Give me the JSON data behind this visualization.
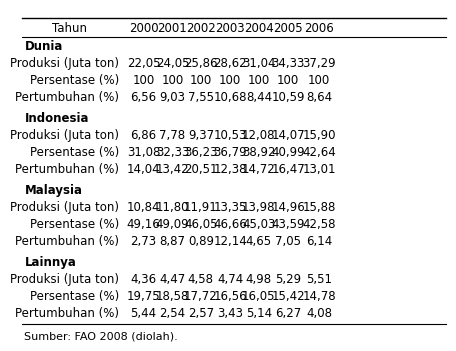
{
  "col_header": [
    "Tahun",
    "2000",
    "2001",
    "2002",
    "2003",
    "2004",
    "2005",
    "2006"
  ],
  "sections": [
    {
      "header": "Dunia",
      "rows": [
        [
          "Produksi (Juta ton)",
          "22,05",
          "24,05",
          "25,86",
          "28,62",
          "31,04",
          "34,33",
          "37,29"
        ],
        [
          "Persentase (%)",
          "100",
          "100",
          "100",
          "100",
          "100",
          "100",
          "100"
        ],
        [
          "Pertumbuhan (%)",
          "6,56",
          "9,03",
          "7,55",
          "10,68",
          "8,44",
          "10,59",
          "8,64"
        ]
      ]
    },
    {
      "header": "Indonesia",
      "rows": [
        [
          "Produksi (Juta ton)",
          "6,86",
          "7,78",
          "9,37",
          "10,53",
          "12,08",
          "14,07",
          "15,90"
        ],
        [
          "Persentase (%)",
          "31,08",
          "32,33",
          "36,23",
          "36,79",
          "38,92",
          "40,99",
          "42,64"
        ],
        [
          "Pertumbuhan (%)",
          "14,04",
          "13,42",
          "20,51",
          "12,38",
          "14,72",
          "16,47",
          "13,01"
        ]
      ]
    },
    {
      "header": "Malaysia",
      "rows": [
        [
          "Produksi (Juta ton)",
          "10,84",
          "11,80",
          "11,91",
          "13,35",
          "13,98",
          "14,96",
          "15,88"
        ],
        [
          "Persentase (%)",
          "49,16",
          "49,09",
          "46,05",
          "46,66",
          "45,03",
          "43,59",
          "42,58"
        ],
        [
          "Pertumbuhan (%)",
          "2,73",
          "8,87",
          "0,89",
          "12,14",
          "4,65",
          "7,05",
          "6,14"
        ]
      ]
    },
    {
      "header": "Lainnya",
      "rows": [
        [
          "Produksi (Juta ton)",
          "4,36",
          "4,47",
          "4,58",
          "4,74",
          "4,98",
          "5,29",
          "5,51"
        ],
        [
          "Persentase (%)",
          "19,75",
          "18,58",
          "17,72",
          "16,56",
          "16,05",
          "15,42",
          "14,78"
        ],
        [
          "Pertumbuhan (%)",
          "5,44",
          "2,54",
          "2,57",
          "3,43",
          "5,14",
          "6,27",
          "4,08"
        ]
      ]
    }
  ],
  "footnote": "Sumber: FAO 2008 (diolah).",
  "bg_color": "#ffffff",
  "text_color": "#000000",
  "fs": 8.5
}
